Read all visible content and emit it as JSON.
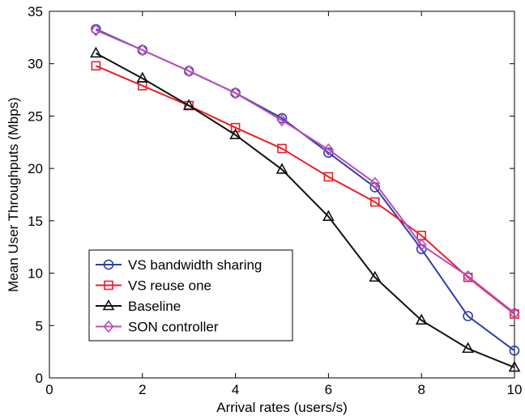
{
  "chart_data": {
    "type": "line",
    "xlabel": "Arrival rates (users/s)",
    "ylabel": "Mean User Throughputs (Mbps)",
    "xlim": [
      0,
      10
    ],
    "ylim": [
      0,
      35
    ],
    "xticks": [
      0,
      2,
      4,
      6,
      8,
      10
    ],
    "yticks": [
      0,
      5,
      10,
      15,
      20,
      25,
      30,
      35
    ],
    "grid": false,
    "legend_position": "bottom-left",
    "x": [
      1,
      2,
      3,
      4,
      5,
      6,
      7,
      8,
      9,
      10
    ],
    "series": [
      {
        "name": "VS bandwidth sharing",
        "color": "#2f3ea8",
        "marker": "circle",
        "values": [
          33.3,
          31.3,
          29.3,
          27.2,
          24.8,
          21.5,
          18.2,
          12.3,
          5.9,
          2.6
        ]
      },
      {
        "name": "VS reuse one",
        "color": "#e8202a",
        "marker": "square",
        "values": [
          29.8,
          27.9,
          26.0,
          23.9,
          21.9,
          19.2,
          16.8,
          13.6,
          9.6,
          6.1
        ]
      },
      {
        "name": "Baseline",
        "color": "#111111",
        "marker": "triangle",
        "values": [
          31.0,
          28.6,
          26.0,
          23.2,
          19.9,
          15.4,
          9.6,
          5.5,
          2.8,
          1.0
        ]
      },
      {
        "name": "SON controller",
        "color": "#b84fb8",
        "marker": "diamond",
        "values": [
          33.2,
          31.3,
          29.3,
          27.2,
          24.6,
          21.8,
          18.6,
          12.7,
          9.7,
          6.2
        ]
      }
    ]
  }
}
